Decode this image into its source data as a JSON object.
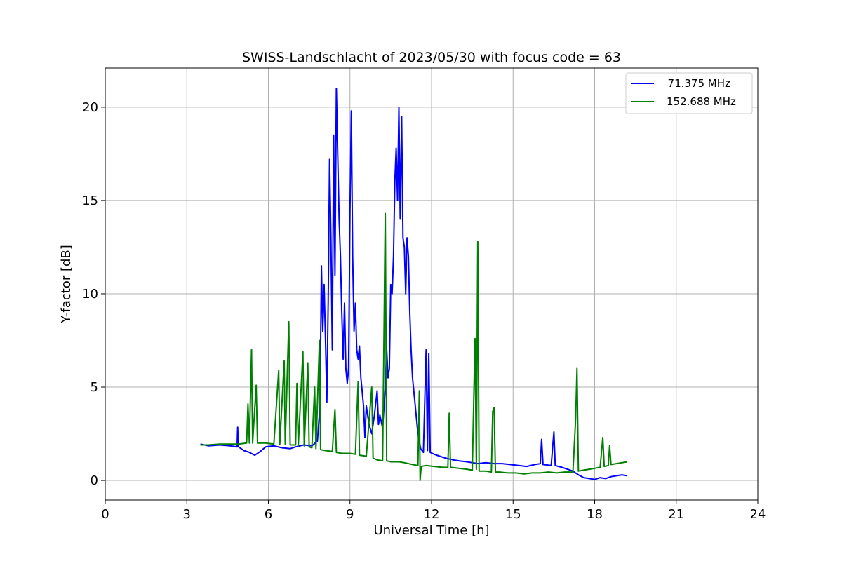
{
  "chart_data": {
    "type": "line",
    "title": "SWISS-Landschlacht of 2023/05/30 with focus code = 63",
    "xlabel": "Universal Time [h]",
    "ylabel": "Y-factor [dB]",
    "xlim": [
      0,
      24
    ],
    "ylim": [
      -1.05,
      22.1
    ],
    "xticks": [
      0,
      3,
      6,
      9,
      12,
      15,
      18,
      21,
      24
    ],
    "xtick_labels": [
      "0",
      "3",
      "6",
      "9",
      "12",
      "15",
      "18",
      "21",
      "24"
    ],
    "yticks": [
      0,
      5,
      10,
      15,
      20
    ],
    "ytick_labels": [
      "0",
      "5",
      "10",
      "15",
      "20"
    ],
    "grid": true,
    "legend_position": "top-right",
    "series": [
      {
        "name": "  71.375 MHz",
        "color": "#0000ff",
        "points": [
          [
            3.5,
            1.95
          ],
          [
            3.8,
            1.85
          ],
          [
            4.2,
            1.9
          ],
          [
            4.6,
            1.85
          ],
          [
            4.85,
            1.8
          ],
          [
            4.87,
            2.85
          ],
          [
            4.9,
            1.8
          ],
          [
            5.1,
            1.6
          ],
          [
            5.3,
            1.5
          ],
          [
            5.5,
            1.35
          ],
          [
            5.7,
            1.55
          ],
          [
            5.9,
            1.8
          ],
          [
            6.2,
            1.85
          ],
          [
            6.5,
            1.75
          ],
          [
            6.8,
            1.7
          ],
          [
            7.0,
            1.8
          ],
          [
            7.3,
            1.9
          ],
          [
            7.6,
            1.85
          ],
          [
            7.8,
            2.1
          ],
          [
            7.9,
            4.0
          ],
          [
            7.95,
            11.5
          ],
          [
            8.0,
            8.0
          ],
          [
            8.05,
            10.5
          ],
          [
            8.1,
            7.5
          ],
          [
            8.15,
            4.2
          ],
          [
            8.2,
            9.5
          ],
          [
            8.25,
            17.2
          ],
          [
            8.3,
            13.0
          ],
          [
            8.35,
            7.0
          ],
          [
            8.4,
            18.5
          ],
          [
            8.45,
            11.0
          ],
          [
            8.5,
            21.0
          ],
          [
            8.55,
            17.5
          ],
          [
            8.6,
            14.0
          ],
          [
            8.65,
            12.0
          ],
          [
            8.7,
            9.0
          ],
          [
            8.75,
            6.5
          ],
          [
            8.8,
            9.5
          ],
          [
            8.85,
            6.0
          ],
          [
            8.9,
            5.2
          ],
          [
            8.95,
            6.0
          ],
          [
            9.0,
            14.5
          ],
          [
            9.05,
            19.8
          ],
          [
            9.1,
            12.0
          ],
          [
            9.15,
            8.0
          ],
          [
            9.2,
            9.5
          ],
          [
            9.25,
            7.0
          ],
          [
            9.3,
            6.5
          ],
          [
            9.35,
            7.2
          ],
          [
            9.4,
            5.5
          ],
          [
            9.5,
            4.0
          ],
          [
            9.55,
            2.3
          ],
          [
            9.6,
            4.0
          ],
          [
            9.7,
            3.0
          ],
          [
            9.8,
            2.5
          ],
          [
            9.9,
            3.5
          ],
          [
            10.0,
            4.8
          ],
          [
            10.05,
            3.0
          ],
          [
            10.1,
            3.5
          ],
          [
            10.2,
            2.8
          ],
          [
            10.3,
            5.0
          ],
          [
            10.35,
            7.0
          ],
          [
            10.4,
            5.5
          ],
          [
            10.45,
            6.0
          ],
          [
            10.5,
            10.5
          ],
          [
            10.55,
            10.0
          ],
          [
            10.6,
            12.0
          ],
          [
            10.65,
            16.0
          ],
          [
            10.7,
            17.8
          ],
          [
            10.75,
            15.0
          ],
          [
            10.8,
            20.0
          ],
          [
            10.85,
            14.0
          ],
          [
            10.9,
            19.5
          ],
          [
            10.95,
            13.0
          ],
          [
            11.0,
            12.5
          ],
          [
            11.05,
            10.0
          ],
          [
            11.1,
            13.0
          ],
          [
            11.15,
            12.0
          ],
          [
            11.2,
            9.0
          ],
          [
            11.25,
            7.0
          ],
          [
            11.3,
            5.5
          ],
          [
            11.4,
            4.0
          ],
          [
            11.5,
            2.5
          ],
          [
            11.6,
            1.7
          ],
          [
            11.7,
            1.5
          ],
          [
            11.8,
            7.0
          ],
          [
            11.85,
            1.6
          ],
          [
            11.9,
            6.8
          ],
          [
            11.95,
            1.5
          ],
          [
            12.1,
            1.4
          ],
          [
            12.3,
            1.3
          ],
          [
            12.5,
            1.2
          ],
          [
            12.8,
            1.1
          ],
          [
            13.0,
            1.05
          ],
          [
            13.3,
            1.0
          ],
          [
            13.5,
            0.95
          ],
          [
            13.7,
            0.9
          ],
          [
            14.0,
            0.95
          ],
          [
            14.3,
            0.9
          ],
          [
            14.6,
            0.9
          ],
          [
            14.9,
            0.85
          ],
          [
            15.2,
            0.8
          ],
          [
            15.5,
            0.75
          ],
          [
            15.8,
            0.85
          ],
          [
            16.0,
            0.9
          ],
          [
            16.05,
            2.2
          ],
          [
            16.1,
            0.85
          ],
          [
            16.4,
            0.8
          ],
          [
            16.5,
            2.6
          ],
          [
            16.55,
            0.8
          ],
          [
            16.8,
            0.7
          ],
          [
            17.0,
            0.6
          ],
          [
            17.2,
            0.5
          ],
          [
            17.4,
            0.3
          ],
          [
            17.6,
            0.15
          ],
          [
            17.8,
            0.1
          ],
          [
            18.0,
            0.05
          ],
          [
            18.2,
            0.15
          ],
          [
            18.4,
            0.1
          ],
          [
            18.6,
            0.2
          ],
          [
            18.8,
            0.25
          ],
          [
            19.0,
            0.3
          ],
          [
            19.2,
            0.25
          ]
        ]
      },
      {
        "name": "152.688 MHz",
        "color": "#008000",
        "points": [
          [
            3.5,
            1.9
          ],
          [
            3.8,
            1.9
          ],
          [
            4.2,
            1.95
          ],
          [
            4.6,
            1.95
          ],
          [
            4.9,
            1.95
          ],
          [
            5.2,
            2.0
          ],
          [
            5.25,
            4.1
          ],
          [
            5.3,
            2.0
          ],
          [
            5.38,
            7.0
          ],
          [
            5.42,
            2.0
          ],
          [
            5.55,
            5.1
          ],
          [
            5.6,
            2.0
          ],
          [
            5.9,
            2.0
          ],
          [
            6.2,
            1.95
          ],
          [
            6.38,
            5.9
          ],
          [
            6.42,
            1.95
          ],
          [
            6.58,
            6.4
          ],
          [
            6.62,
            1.95
          ],
          [
            6.75,
            8.5
          ],
          [
            6.8,
            1.9
          ],
          [
            7.0,
            1.9
          ],
          [
            7.05,
            5.2
          ],
          [
            7.1,
            1.85
          ],
          [
            7.27,
            6.9
          ],
          [
            7.32,
            1.85
          ],
          [
            7.45,
            6.3
          ],
          [
            7.5,
            1.8
          ],
          [
            7.6,
            1.75
          ],
          [
            7.7,
            5.0
          ],
          [
            7.75,
            1.7
          ],
          [
            7.88,
            7.5
          ],
          [
            7.92,
            1.65
          ],
          [
            8.1,
            1.6
          ],
          [
            8.35,
            1.55
          ],
          [
            8.45,
            3.8
          ],
          [
            8.5,
            1.5
          ],
          [
            8.7,
            1.45
          ],
          [
            9.0,
            1.45
          ],
          [
            9.2,
            1.4
          ],
          [
            9.3,
            5.3
          ],
          [
            9.35,
            1.35
          ],
          [
            9.6,
            1.3
          ],
          [
            9.8,
            5.0
          ],
          [
            9.85,
            1.2
          ],
          [
            10.0,
            1.1
          ],
          [
            10.2,
            1.05
          ],
          [
            10.3,
            14.3
          ],
          [
            10.35,
            1.05
          ],
          [
            10.5,
            1.0
          ],
          [
            10.8,
            1.0
          ],
          [
            11.0,
            0.95
          ],
          [
            11.3,
            0.85
          ],
          [
            11.5,
            0.8
          ],
          [
            11.55,
            4.8
          ],
          [
            11.58,
            0.0
          ],
          [
            11.62,
            0.75
          ],
          [
            11.8,
            0.8
          ],
          [
            12.1,
            0.75
          ],
          [
            12.4,
            0.7
          ],
          [
            12.6,
            0.7
          ],
          [
            12.65,
            3.6
          ],
          [
            12.7,
            0.7
          ],
          [
            13.0,
            0.65
          ],
          [
            13.3,
            0.6
          ],
          [
            13.5,
            0.55
          ],
          [
            13.6,
            7.6
          ],
          [
            13.65,
            0.6
          ],
          [
            13.7,
            12.8
          ],
          [
            13.75,
            0.5
          ],
          [
            14.0,
            0.5
          ],
          [
            14.2,
            0.45
          ],
          [
            14.25,
            3.7
          ],
          [
            14.3,
            3.9
          ],
          [
            14.35,
            0.45
          ],
          [
            14.5,
            0.45
          ],
          [
            14.8,
            0.4
          ],
          [
            15.1,
            0.4
          ],
          [
            15.4,
            0.35
          ],
          [
            15.7,
            0.4
          ],
          [
            16.0,
            0.4
          ],
          [
            16.3,
            0.45
          ],
          [
            16.6,
            0.4
          ],
          [
            16.9,
            0.45
          ],
          [
            17.2,
            0.45
          ],
          [
            17.3,
            3.3
          ],
          [
            17.35,
            6.0
          ],
          [
            17.4,
            0.5
          ],
          [
            17.6,
            0.55
          ],
          [
            17.8,
            0.6
          ],
          [
            18.0,
            0.65
          ],
          [
            18.2,
            0.7
          ],
          [
            18.3,
            2.3
          ],
          [
            18.35,
            0.75
          ],
          [
            18.5,
            0.8
          ],
          [
            18.55,
            1.85
          ],
          [
            18.6,
            0.85
          ],
          [
            18.8,
            0.9
          ],
          [
            19.0,
            0.95
          ],
          [
            19.2,
            1.0
          ]
        ]
      }
    ]
  }
}
